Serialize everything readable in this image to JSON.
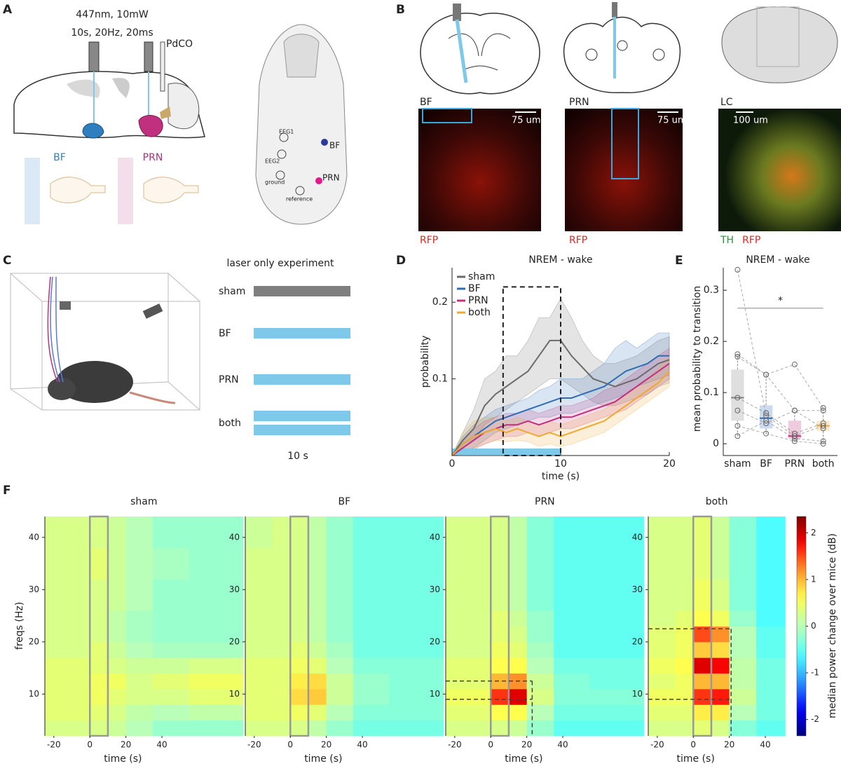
{
  "panel_labels": [
    "A",
    "B",
    "C",
    "D",
    "E",
    "F"
  ],
  "panel_a": {
    "laser": "447nm, 10mW",
    "protocol": "10s, 20Hz, 20ms",
    "drug": "PdCO",
    "regions": [
      {
        "label": "BF",
        "color": "#2f7fbf"
      },
      {
        "label": "PRN",
        "color": "#b0307a"
      }
    ],
    "skull_labels": [
      "EEG1",
      "EEG2",
      "ground",
      "reference",
      "BF",
      "PRN"
    ]
  },
  "panel_b": {
    "sections": [
      {
        "name": "BF",
        "scale": "75 um",
        "stains": [
          {
            "label": "RFP",
            "color": "#e8231d"
          }
        ]
      },
      {
        "name": "PRN",
        "scale": "75 um",
        "stains": [
          {
            "label": "RFP",
            "color": "#e8231d"
          }
        ]
      },
      {
        "name": "LC",
        "scale": "100 um",
        "stains": [
          {
            "label": "TH",
            "color": "#1a9a3a"
          },
          {
            "label": "RFP",
            "color": "#e8231d"
          }
        ]
      }
    ]
  },
  "panel_c": {
    "title": "laser only experiment",
    "conditions": [
      "sham",
      "BF",
      "PRN",
      "both"
    ],
    "bar_colors": [
      "#7f7f7f",
      "#7ec8ea",
      "#7ec8ea",
      "#7ec8ea"
    ],
    "bars_per_condition": [
      1,
      1,
      1,
      2
    ],
    "duration": "10 s"
  },
  "chart_data": [
    {
      "type": "line",
      "title": "NREM - wake",
      "xlabel": "time (s)",
      "ylabel": "probability",
      "x": [
        0,
        1,
        2,
        3,
        4,
        5,
        6,
        7,
        8,
        9,
        10,
        11,
        12,
        13,
        14,
        15,
        16,
        17,
        18,
        19,
        20
      ],
      "xlim": [
        0,
        20
      ],
      "ylim": [
        0,
        0.245
      ],
      "xticks": [
        0,
        10,
        20
      ],
      "yticks": [
        0.1,
        0.2
      ],
      "legend": "upper left",
      "highlight": {
        "x": [
          4.7,
          10
        ],
        "y": [
          0,
          0.22
        ]
      },
      "stim": {
        "x": [
          0,
          10
        ],
        "color": "#7ec8ea"
      },
      "series": [
        {
          "name": "sham",
          "color": "#6b6b6b",
          "values": [
            0,
            0.02,
            0.035,
            0.065,
            0.08,
            0.09,
            0.1,
            0.11,
            0.13,
            0.15,
            0.15,
            0.13,
            0.115,
            0.1,
            0.095,
            0.09,
            0.095,
            0.1,
            0.11,
            0.12,
            0.125
          ],
          "upper": [
            0,
            0.03,
            0.06,
            0.1,
            0.11,
            0.13,
            0.13,
            0.15,
            0.18,
            0.18,
            0.205,
            0.18,
            0.15,
            0.13,
            0.12,
            0.12,
            0.125,
            0.13,
            0.14,
            0.15,
            0.155
          ],
          "lower": [
            0,
            0.01,
            0.02,
            0.04,
            0.05,
            0.06,
            0.07,
            0.08,
            0.09,
            0.1,
            0.1,
            0.09,
            0.08,
            0.07,
            0.065,
            0.065,
            0.07,
            0.075,
            0.08,
            0.09,
            0.095
          ]
        },
        {
          "name": "BF",
          "color": "#2f6db5",
          "values": [
            0,
            0.015,
            0.025,
            0.035,
            0.045,
            0.05,
            0.055,
            0.06,
            0.065,
            0.07,
            0.075,
            0.075,
            0.08,
            0.085,
            0.09,
            0.1,
            0.11,
            0.115,
            0.12,
            0.13,
            0.13
          ],
          "upper": [
            0,
            0.025,
            0.04,
            0.05,
            0.06,
            0.065,
            0.07,
            0.075,
            0.085,
            0.09,
            0.1,
            0.1,
            0.1,
            0.11,
            0.12,
            0.14,
            0.15,
            0.14,
            0.15,
            0.16,
            0.16
          ],
          "lower": [
            0,
            0.005,
            0.01,
            0.02,
            0.03,
            0.035,
            0.04,
            0.045,
            0.05,
            0.05,
            0.055,
            0.055,
            0.06,
            0.065,
            0.07,
            0.075,
            0.08,
            0.09,
            0.095,
            0.1,
            0.105
          ]
        },
        {
          "name": "PRN",
          "color": "#c0307f",
          "values": [
            0,
            0.01,
            0.02,
            0.03,
            0.035,
            0.04,
            0.04,
            0.045,
            0.04,
            0.045,
            0.05,
            0.05,
            0.055,
            0.06,
            0.065,
            0.07,
            0.08,
            0.09,
            0.1,
            0.11,
            0.12
          ],
          "upper": [
            0,
            0.02,
            0.035,
            0.045,
            0.05,
            0.055,
            0.055,
            0.06,
            0.055,
            0.06,
            0.065,
            0.065,
            0.07,
            0.075,
            0.085,
            0.09,
            0.1,
            0.11,
            0.12,
            0.13,
            0.14
          ],
          "lower": [
            0,
            0.002,
            0.008,
            0.015,
            0.02,
            0.025,
            0.025,
            0.03,
            0.025,
            0.03,
            0.035,
            0.035,
            0.04,
            0.045,
            0.05,
            0.055,
            0.06,
            0.07,
            0.08,
            0.09,
            0.1
          ]
        },
        {
          "name": "both",
          "color": "#f0a830",
          "values": [
            0,
            0.015,
            0.025,
            0.03,
            0.035,
            0.03,
            0.035,
            0.03,
            0.025,
            0.03,
            0.025,
            0.03,
            0.035,
            0.04,
            0.045,
            0.055,
            0.065,
            0.075,
            0.085,
            0.095,
            0.11
          ],
          "upper": [
            0,
            0.03,
            0.045,
            0.05,
            0.05,
            0.045,
            0.05,
            0.045,
            0.04,
            0.045,
            0.04,
            0.045,
            0.05,
            0.055,
            0.06,
            0.07,
            0.08,
            0.09,
            0.1,
            0.115,
            0.13
          ],
          "lower": [
            0,
            0.005,
            0.01,
            0.015,
            0.02,
            0.018,
            0.02,
            0.018,
            0.012,
            0.015,
            0.012,
            0.015,
            0.02,
            0.025,
            0.03,
            0.04,
            0.05,
            0.06,
            0.07,
            0.08,
            0.09
          ]
        }
      ]
    },
    {
      "type": "box",
      "title": "NREM - wake",
      "ylabel": "mean probability to transition",
      "categories": [
        "sham",
        "BF",
        "PRN",
        "both"
      ],
      "colors": [
        "#7f7f7f",
        "#2f6db5",
        "#c0307f",
        "#f0a830"
      ],
      "ylim": [
        -0.023,
        0.344
      ],
      "yticks": [
        0,
        0.1,
        0.2,
        0.3
      ],
      "boxes": [
        {
          "q1": 0.045,
          "median": 0.09,
          "q3": 0.145,
          "whisker_low": 0.015,
          "whisker_high": 0.175,
          "points": [
            0.34,
            0.175,
            0.17,
            0.09,
            0.065,
            0.035,
            0.015
          ]
        },
        {
          "q1": 0.03,
          "median": 0.05,
          "q3": 0.075,
          "whisker_low": 0.02,
          "whisker_high": 0.135,
          "points": [
            0.055,
            0.135,
            0.135,
            0.06,
            0.04,
            0.02,
            0.045
          ]
        },
        {
          "q1": 0.01,
          "median": 0.015,
          "q3": 0.045,
          "whisker_low": 0.005,
          "whisker_high": 0.065,
          "points": [
            0.015,
            0.065,
            0.155,
            0.02,
            0.065,
            0.005,
            0.01
          ]
        },
        {
          "q1": 0.025,
          "median": 0.035,
          "q3": 0.045,
          "whisker_low": 0,
          "whisker_high": 0.07,
          "points": [
            0.035,
            0.065,
            0.07,
            0.04,
            0.03,
            0,
            0.005
          ]
        }
      ],
      "significance": {
        "pair": [
          "sham",
          "both"
        ],
        "y": 0.265,
        "label": "*"
      }
    },
    {
      "type": "heatmap",
      "title": "sham",
      "xlabel": "time (s)",
      "ylabel": "freqs (Hz)",
      "colormap": "jet",
      "clim": [
        -2.35,
        2.35
      ],
      "xlim": [
        -25,
        85
      ],
      "ylim": [
        2,
        44
      ],
      "xticks": [
        -20,
        0,
        20,
        40
      ],
      "yticks": [
        10,
        20,
        30,
        40
      ],
      "stim": [
        0,
        10
      ],
      "x_bins": [
        -25,
        -10,
        0,
        10,
        20,
        35,
        55,
        85
      ],
      "y_bins": [
        2,
        5,
        8,
        11,
        14,
        17,
        20,
        23,
        26,
        32,
        38,
        44
      ],
      "z": [
        [
          0.3,
          0.3,
          0.3,
          0.2,
          0,
          -0.2,
          -0.2
        ],
        [
          0.4,
          0.4,
          0.4,
          0.3,
          0.1,
          0,
          0.1
        ],
        [
          0.4,
          0.4,
          0.5,
          0.4,
          0.3,
          0.3,
          0.4
        ],
        [
          0.4,
          0.4,
          0.5,
          0.5,
          0.3,
          0.4,
          0.5
        ],
        [
          0.4,
          0.4,
          0.4,
          0.3,
          0.2,
          0.2,
          0.3
        ],
        [
          0.3,
          0.3,
          0.4,
          0.2,
          0,
          -0.1,
          -0.1
        ],
        [
          0.3,
          0.3,
          0.3,
          0.1,
          -0.1,
          -0.2,
          -0.2
        ],
        [
          0.3,
          0.3,
          0.3,
          0.1,
          -0.1,
          -0.2,
          -0.2
        ],
        [
          0.3,
          0.3,
          0.3,
          0.2,
          0,
          -0.2,
          -0.2
        ],
        [
          0.3,
          0.3,
          0.4,
          0.2,
          0,
          -0.1,
          -0.2
        ],
        [
          0.3,
          0.3,
          0.3,
          0.2,
          0,
          -0.2,
          -0.2
        ]
      ]
    },
    {
      "type": "heatmap",
      "title": "BF",
      "xlabel": "time (s)",
      "colormap": "jet",
      "clim": [
        -2.35,
        2.35
      ],
      "xlim": [
        -25,
        85
      ],
      "ylim": [
        2,
        44
      ],
      "xticks": [
        -20,
        0,
        20,
        40
      ],
      "yticks": [
        10,
        20,
        30,
        40
      ],
      "stim": [
        0,
        10
      ],
      "x_bins": [
        -25,
        -10,
        0,
        10,
        20,
        35,
        55,
        85
      ],
      "y_bins": [
        2,
        5,
        8,
        11,
        14,
        17,
        20,
        23,
        26,
        32,
        38,
        44
      ],
      "z": [
        [
          0.3,
          0.3,
          0.3,
          0.1,
          -0.2,
          -0.4,
          -0.4
        ],
        [
          0.4,
          0.4,
          0.5,
          0.4,
          0,
          -0.3,
          -0.3
        ],
        [
          0.4,
          0.4,
          0.8,
          0.9,
          0.2,
          -0.2,
          -0.3
        ],
        [
          0.4,
          0.4,
          0.7,
          0.8,
          0.2,
          -0.2,
          -0.3
        ],
        [
          0.4,
          0.4,
          0.5,
          0.4,
          0,
          -0.3,
          -0.3
        ],
        [
          0.3,
          0.3,
          0.4,
          0.2,
          -0.1,
          -0.4,
          -0.4
        ],
        [
          0.3,
          0.3,
          0.3,
          0.1,
          -0.2,
          -0.4,
          -0.4
        ],
        [
          0.3,
          0.3,
          0.3,
          0.1,
          -0.2,
          -0.4,
          -0.4
        ],
        [
          0.3,
          0.3,
          0.3,
          0.1,
          -0.2,
          -0.4,
          -0.4
        ],
        [
          0.3,
          0.3,
          0.3,
          0.1,
          -0.2,
          -0.4,
          -0.4
        ],
        [
          0.2,
          0.3,
          0.3,
          0.1,
          -0.2,
          -0.4,
          -0.4
        ]
      ]
    },
    {
      "type": "heatmap",
      "title": "PRN",
      "xlabel": "time (s)",
      "colormap": "jet",
      "clim": [
        -2.35,
        2.35
      ],
      "xlim": [
        -25,
        85
      ],
      "ylim": [
        2,
        44
      ],
      "xticks": [
        -20,
        0,
        20,
        40
      ],
      "yticks": [
        10,
        20,
        30,
        40
      ],
      "stim": [
        0,
        10
      ],
      "window": {
        "t": [
          -25,
          23
        ],
        "f": [
          9,
          12.5
        ]
      },
      "x_bins": [
        -25,
        -10,
        0,
        10,
        20,
        35,
        55,
        85
      ],
      "y_bins": [
        2,
        5,
        8,
        11,
        14,
        17,
        20,
        23,
        26,
        32,
        38,
        44
      ],
      "z": [
        [
          0.3,
          0.3,
          0.3,
          0.2,
          -0.2,
          -0.5,
          -0.5
        ],
        [
          0.4,
          0.4,
          0.6,
          0.6,
          0,
          -0.4,
          -0.4
        ],
        [
          0.5,
          0.5,
          1.6,
          1.9,
          0.3,
          -0.3,
          -0.3
        ],
        [
          0.4,
          0.4,
          1,
          1.2,
          0.2,
          -0.3,
          -0.4
        ],
        [
          0.4,
          0.4,
          0.6,
          0.6,
          0,
          -0.4,
          -0.4
        ],
        [
          0.3,
          0.3,
          0.5,
          0.4,
          -0.1,
          -0.5,
          -0.5
        ],
        [
          0.3,
          0.3,
          0.4,
          0.3,
          -0.2,
          -0.5,
          -0.5
        ],
        [
          0.3,
          0.3,
          0.4,
          0.2,
          -0.2,
          -0.5,
          -0.5
        ],
        [
          0.3,
          0.3,
          0.3,
          0.1,
          -0.3,
          -0.5,
          -0.5
        ],
        [
          0.3,
          0.3,
          0.3,
          0.1,
          -0.3,
          -0.5,
          -0.5
        ],
        [
          0.3,
          0.3,
          0.3,
          0.1,
          -0.3,
          -0.5,
          -0.5
        ]
      ]
    },
    {
      "type": "heatmap",
      "title": "both",
      "xlabel": "time (s)",
      "colormap": "jet",
      "clim": [
        -2.35,
        2.35
      ],
      "xlim": [
        -25,
        51
      ],
      "ylim": [
        2,
        44
      ],
      "xticks": [
        -20,
        0,
        20,
        40
      ],
      "yticks": [
        10,
        20,
        30,
        40
      ],
      "stim": [
        0,
        10
      ],
      "window": {
        "t": [
          -25,
          21
        ],
        "f": [
          9,
          22.5
        ]
      },
      "x_bins": [
        -25,
        -10,
        0,
        10,
        20,
        35,
        51
      ],
      "y_bins": [
        2,
        5,
        8,
        11,
        14,
        17,
        20,
        23,
        26,
        32,
        38,
        44
      ],
      "z": [
        [
          0.3,
          0.3,
          0.4,
          0.3,
          -0.3,
          -0.5
        ],
        [
          0.4,
          0.4,
          0.7,
          0.7,
          0,
          -0.4
        ],
        [
          0.5,
          0.5,
          1.6,
          1.7,
          0.2,
          -0.4
        ],
        [
          0.4,
          0.5,
          1,
          1,
          0.1,
          -0.4
        ],
        [
          0.5,
          0.6,
          1.9,
          1.8,
          0.1,
          -0.4
        ],
        [
          0.4,
          0.5,
          0.9,
          0.8,
          0,
          -0.5
        ],
        [
          0.4,
          0.5,
          1.5,
          1.2,
          0,
          -0.5
        ],
        [
          0.3,
          0.4,
          0.6,
          0.5,
          -0.2,
          -0.6
        ],
        [
          0.3,
          0.3,
          0.5,
          0.3,
          -0.3,
          -0.6
        ],
        [
          0.3,
          0.3,
          0.4,
          0.2,
          -0.3,
          -0.6
        ],
        [
          0.3,
          0.3,
          0.4,
          0.2,
          -0.3,
          -0.6
        ]
      ],
      "colorbar": {
        "label": "median power change over mice (dB)",
        "ticks": [
          -2,
          -1,
          0,
          1,
          2
        ]
      }
    }
  ]
}
